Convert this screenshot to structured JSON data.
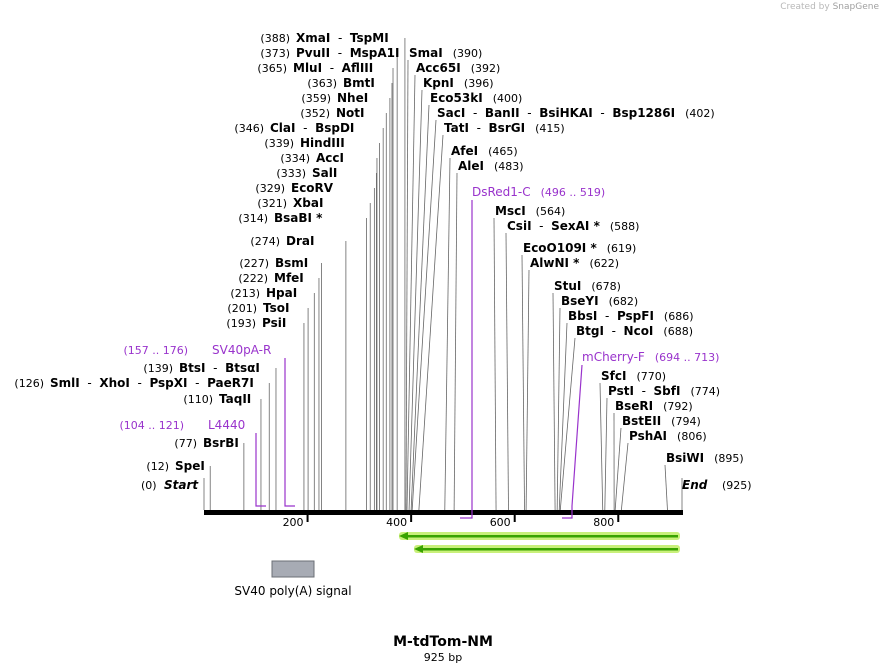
{
  "credit": {
    "prefix": "Created by",
    "brand": "SnapGene"
  },
  "map": {
    "title": "M-tdTom-NM",
    "length_label": "925 bp",
    "length_bp": 925,
    "start_label": "Start",
    "end_label": "End",
    "start_pos": "(0)",
    "end_pos": "(925)",
    "ticks": [
      {
        "bp": 200,
        "label": "200"
      },
      {
        "bp": 400,
        "label": "400"
      },
      {
        "bp": 600,
        "label": "600"
      },
      {
        "bp": 800,
        "label": "800"
      }
    ]
  },
  "sites": [
    {
      "label": [
        [
          "SpeI",
          "b"
        ]
      ],
      "pos": "(12)",
      "pos_side": "left",
      "bp": 12
    },
    {
      "label": [
        [
          "BsrBI",
          "b"
        ]
      ],
      "pos": "(77)",
      "pos_side": "left",
      "bp": 77
    },
    {
      "label": [
        [
          "TaqII",
          "b"
        ]
      ],
      "pos": "(110)",
      "pos_side": "left",
      "bp": 110
    },
    {
      "label": [
        [
          "SmlI",
          "b"
        ],
        [
          "  -  ",
          "n"
        ],
        [
          "XhoI",
          "b"
        ],
        [
          "  -  ",
          "n"
        ],
        [
          "PspXI",
          "b"
        ],
        [
          "  -  ",
          "n"
        ],
        [
          "PaeR7I",
          "b"
        ]
      ],
      "pos": "(126)",
      "pos_side": "left",
      "bp": 126
    },
    {
      "label": [
        [
          "BtsI",
          "b"
        ],
        [
          "  -  ",
          "n"
        ],
        [
          "BtsαI",
          "b"
        ]
      ],
      "pos": "(139)",
      "pos_side": "left",
      "bp": 139
    },
    {
      "label": [
        [
          "PsiI",
          "b"
        ]
      ],
      "pos": "(193)",
      "pos_side": "left",
      "bp": 193
    },
    {
      "label": [
        [
          "TsoI",
          "b"
        ]
      ],
      "pos": "(201)",
      "pos_side": "left",
      "bp": 201
    },
    {
      "label": [
        [
          "HpaI",
          "b"
        ]
      ],
      "pos": "(213)",
      "pos_side": "left",
      "bp": 213
    },
    {
      "label": [
        [
          "MfeI",
          "b"
        ]
      ],
      "pos": "(222)",
      "pos_side": "left",
      "bp": 222
    },
    {
      "label": [
        [
          "BsmI",
          "b"
        ]
      ],
      "pos": "(227)",
      "pos_side": "left",
      "bp": 227
    },
    {
      "label": [
        [
          "DraI",
          "b"
        ]
      ],
      "pos": "(274)",
      "pos_side": "left",
      "bp": 274
    },
    {
      "label": [
        [
          "BsaBI *",
          "b"
        ]
      ],
      "pos": "(314)",
      "pos_side": "left",
      "bp": 314
    },
    {
      "label": [
        [
          "XbaI",
          "b"
        ]
      ],
      "pos": "(321)",
      "pos_side": "left",
      "bp": 321
    },
    {
      "label": [
        [
          "EcoRV",
          "b"
        ]
      ],
      "pos": "(329)",
      "pos_side": "left",
      "bp": 329
    },
    {
      "label": [
        [
          "SalI",
          "b"
        ]
      ],
      "pos": "(333)",
      "pos_side": "left",
      "bp": 333
    },
    {
      "label": [
        [
          "AccI",
          "b"
        ]
      ],
      "pos": "(334)",
      "pos_side": "left",
      "bp": 334
    },
    {
      "label": [
        [
          "HindIII",
          "b"
        ]
      ],
      "pos": "(339)",
      "pos_side": "left",
      "bp": 339
    },
    {
      "label": [
        [
          "ClaI",
          "b"
        ],
        [
          "  -  ",
          "n"
        ],
        [
          "BspDI",
          "b"
        ]
      ],
      "pos": "(346)",
      "pos_side": "left",
      "bp": 346
    },
    {
      "label": [
        [
          "NotI",
          "b"
        ]
      ],
      "pos": "(352)",
      "pos_side": "left",
      "bp": 352
    },
    {
      "label": [
        [
          "NheI",
          "b"
        ]
      ],
      "pos": "(359)",
      "pos_side": "left",
      "bp": 359
    },
    {
      "label": [
        [
          "BmtI",
          "b"
        ]
      ],
      "pos": "(363)",
      "pos_side": "left",
      "bp": 363
    },
    {
      "label": [
        [
          "MluI",
          "b"
        ],
        [
          "  -  ",
          "n"
        ],
        [
          "AflIII",
          "b"
        ]
      ],
      "pos": "(365)",
      "pos_side": "left",
      "bp": 365
    },
    {
      "label": [
        [
          "PvuII",
          "b"
        ],
        [
          "  -  ",
          "n"
        ],
        [
          "MspA1I",
          "b"
        ]
      ],
      "pos": "(373)",
      "pos_side": "left",
      "bp": 373
    },
    {
      "label": [
        [
          "XmaI",
          "b"
        ],
        [
          "  -  ",
          "n"
        ],
        [
          "TspMI",
          "b"
        ]
      ],
      "pos": "(388)",
      "pos_side": "left",
      "bp": 388
    },
    {
      "label": [
        [
          "SmaI",
          "b"
        ]
      ],
      "pos": "(390)",
      "pos_side": "right",
      "bp": 390
    },
    {
      "label": [
        [
          "Acc65I",
          "b"
        ]
      ],
      "pos": "(392)",
      "pos_side": "right",
      "bp": 392
    },
    {
      "label": [
        [
          "KpnI",
          "b"
        ]
      ],
      "pos": "(396)",
      "pos_side": "right",
      "bp": 396
    },
    {
      "label": [
        [
          "Eco53kI",
          "b"
        ]
      ],
      "pos": "(400)",
      "pos_side": "right",
      "bp": 400
    },
    {
      "label": [
        [
          "SacI",
          "b"
        ],
        [
          "  -  ",
          "n"
        ],
        [
          "BanII",
          "b"
        ],
        [
          "  -  ",
          "n"
        ],
        [
          "BsiHKAI",
          "b"
        ],
        [
          "  -  ",
          "n"
        ],
        [
          "Bsp1286I",
          "b"
        ]
      ],
      "pos": "(402)",
      "pos_side": "right",
      "bp": 402
    },
    {
      "label": [
        [
          "TatI",
          "b"
        ],
        [
          "  -  ",
          "n"
        ],
        [
          "BsrGI",
          "b"
        ]
      ],
      "pos": "(415)",
      "pos_side": "right",
      "bp": 415
    },
    {
      "label": [
        [
          "AfeI",
          "b"
        ]
      ],
      "pos": "(465)",
      "pos_side": "right",
      "bp": 465
    },
    {
      "label": [
        [
          "AleI",
          "b"
        ]
      ],
      "pos": "(483)",
      "pos_side": "right",
      "bp": 483
    },
    {
      "label": [
        [
          "MscI",
          "b"
        ]
      ],
      "pos": "(564)",
      "pos_side": "right",
      "bp": 564
    },
    {
      "label": [
        [
          "CsiI",
          "b"
        ],
        [
          "  -  ",
          "n"
        ],
        [
          "SexAI *",
          "b"
        ]
      ],
      "pos": "(588)",
      "pos_side": "right",
      "bp": 588
    },
    {
      "label": [
        [
          "EcoO109I *",
          "b"
        ]
      ],
      "pos": "(619)",
      "pos_side": "right",
      "bp": 619
    },
    {
      "label": [
        [
          "AlwNI *",
          "b"
        ]
      ],
      "pos": "(622)",
      "pos_side": "right",
      "bp": 622
    },
    {
      "label": [
        [
          "StuI",
          "b"
        ]
      ],
      "pos": "(678)",
      "pos_side": "right",
      "bp": 678
    },
    {
      "label": [
        [
          "BseYI",
          "b"
        ]
      ],
      "pos": "(682)",
      "pos_side": "right",
      "bp": 682
    },
    {
      "label": [
        [
          "BbsI",
          "b"
        ],
        [
          "  -  ",
          "n"
        ],
        [
          "PspFI",
          "b"
        ]
      ],
      "pos": "(686)",
      "pos_side": "right",
      "bp": 686
    },
    {
      "label": [
        [
          "BtgI",
          "b"
        ],
        [
          "  -  ",
          "n"
        ],
        [
          "NcoI",
          "b"
        ]
      ],
      "pos": "(688)",
      "pos_side": "right",
      "bp": 688
    },
    {
      "label": [
        [
          "SfcI",
          "b"
        ]
      ],
      "pos": "(770)",
      "pos_side": "right",
      "bp": 770
    },
    {
      "label": [
        [
          "PstI",
          "b"
        ],
        [
          "  -  ",
          "n"
        ],
        [
          "SbfI",
          "b"
        ]
      ],
      "pos": "(774)",
      "pos_side": "right",
      "bp": 774
    },
    {
      "label": [
        [
          "BseRI",
          "b"
        ]
      ],
      "pos": "(792)",
      "pos_side": "right",
      "bp": 792
    },
    {
      "label": [
        [
          "BstEII",
          "b"
        ]
      ],
      "pos": "(794)",
      "pos_side": "right",
      "bp": 794
    },
    {
      "label": [
        [
          "PshAI",
          "b"
        ]
      ],
      "pos": "(806)",
      "pos_side": "right",
      "bp": 806
    },
    {
      "label": [
        [
          "BsiWI",
          "b"
        ]
      ],
      "pos": "(895)",
      "pos_side": "right",
      "bp": 895
    }
  ],
  "primers": [
    {
      "name": "L4440",
      "range": "(104 .. 121)",
      "start": 104,
      "end": 121,
      "side": "left"
    },
    {
      "name": "SV40pA-R",
      "range": "(157 .. 176)",
      "start": 157,
      "end": 176,
      "side": "left"
    },
    {
      "name": "DsRed1-C",
      "range": "(496 .. 519)",
      "start": 496,
      "end": 519,
      "side": "right"
    },
    {
      "name": "mCherry-F",
      "range": "(694 .. 713)",
      "start": 694,
      "end": 713,
      "side": "right"
    }
  ],
  "features": [
    {
      "name": "SV40 poly(A) signal",
      "color": "#a7abb4"
    }
  ],
  "colors": {
    "primer": "#9933cc",
    "orf_fill": "#39a300",
    "orf_glow": "#c9f07a"
  }
}
